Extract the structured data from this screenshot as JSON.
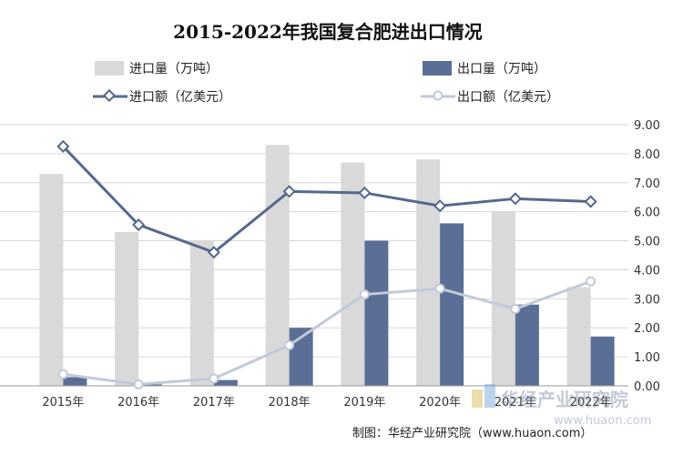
{
  "chart_data": {
    "type": "bar",
    "title": "2015-2022年我国复合肥进出口情况",
    "categories": [
      "2015年",
      "2016年",
      "2017年",
      "2018年",
      "2019年",
      "2020年",
      "2021年",
      "2022年"
    ],
    "bar_series": [
      {
        "name": "进口量（万吨）",
        "values": [
          73,
          53,
          50,
          83,
          77,
          78,
          60,
          34
        ],
        "color": "#d9d9d9"
      },
      {
        "name": "出口量（万吨）",
        "values": [
          3,
          0.5,
          2,
          20,
          50,
          56,
          28,
          17
        ],
        "color": "#5b6e96"
      }
    ],
    "line_series": [
      {
        "name": "进口额（亿美元）",
        "values": [
          8.25,
          5.55,
          4.6,
          6.7,
          6.65,
          6.2,
          6.45,
          6.35
        ],
        "color": "#55688f"
      },
      {
        "name": "出口额（亿美元）",
        "values": [
          0.4,
          0.05,
          0.25,
          1.4,
          3.15,
          3.35,
          2.65,
          3.6
        ],
        "color": "#c2c9d9"
      }
    ],
    "y_left_lim": [
      0,
      90
    ],
    "y_right_lim": [
      0,
      9
    ],
    "y_right_ticks": [
      "0.00",
      "1.00",
      "2.00",
      "3.00",
      "4.00",
      "5.00",
      "6.00",
      "7.00",
      "8.00",
      "9.00"
    ],
    "legend_position": "top"
  },
  "source_text": "制图：华经产业研究院（www.huaon.com）",
  "watermark_text": "华经产业研究院",
  "watermark_url": "www.huaon.com"
}
